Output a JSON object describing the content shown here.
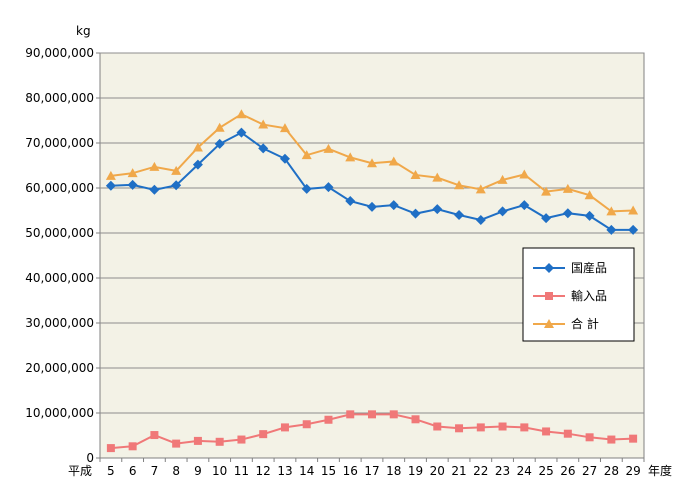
{
  "chart_data": {
    "type": "line",
    "unit_label": "kg",
    "x_prefix": "平成",
    "x_suffix": "年度",
    "categories": [
      "5",
      "6",
      "7",
      "8",
      "9",
      "10",
      "11",
      "12",
      "13",
      "14",
      "15",
      "16",
      "17",
      "18",
      "19",
      "20",
      "21",
      "22",
      "23",
      "24",
      "25",
      "26",
      "27",
      "28",
      "29"
    ],
    "ylim": [
      0,
      90000000
    ],
    "yticks": [
      0,
      10000000,
      20000000,
      30000000,
      40000000,
      50000000,
      60000000,
      70000000,
      80000000,
      90000000
    ],
    "ytick_labels": [
      "0",
      "10,000,000",
      "20,000,000",
      "30,000,000",
      "40,000,000",
      "50,000,000",
      "60,000,000",
      "70,000,000",
      "80,000,000",
      "90,000,000"
    ],
    "grid": true,
    "legend_position": "right",
    "series": [
      {
        "name": "国産品",
        "color": "#1f6fc5",
        "marker": "diamond",
        "values": [
          60500000,
          60700000,
          59600000,
          60600000,
          65200000,
          69800000,
          72300000,
          68800000,
          66500000,
          59800000,
          60200000,
          57100000,
          55800000,
          56200000,
          54300000,
          55300000,
          54000000,
          52900000,
          54800000,
          56200000,
          53300000,
          54400000,
          53800000,
          50700000,
          50700000
        ]
      },
      {
        "name": "輸入品",
        "color": "#f07878",
        "marker": "square",
        "values": [
          2200000,
          2600000,
          5100000,
          3200000,
          3800000,
          3600000,
          4100000,
          5300000,
          6800000,
          7500000,
          8500000,
          9700000,
          9700000,
          9700000,
          8600000,
          7000000,
          6600000,
          6800000,
          7000000,
          6800000,
          5900000,
          5400000,
          4600000,
          4100000,
          4300000
        ]
      },
      {
        "name": "合 計",
        "color": "#f0a84a",
        "marker": "triangle",
        "values": [
          62700000,
          63300000,
          64700000,
          63800000,
          69000000,
          73400000,
          76400000,
          74100000,
          73300000,
          67300000,
          68700000,
          66800000,
          65500000,
          65900000,
          62900000,
          62300000,
          60600000,
          59700000,
          61800000,
          63000000,
          59200000,
          59800000,
          58400000,
          54800000,
          55000000
        ]
      }
    ]
  }
}
